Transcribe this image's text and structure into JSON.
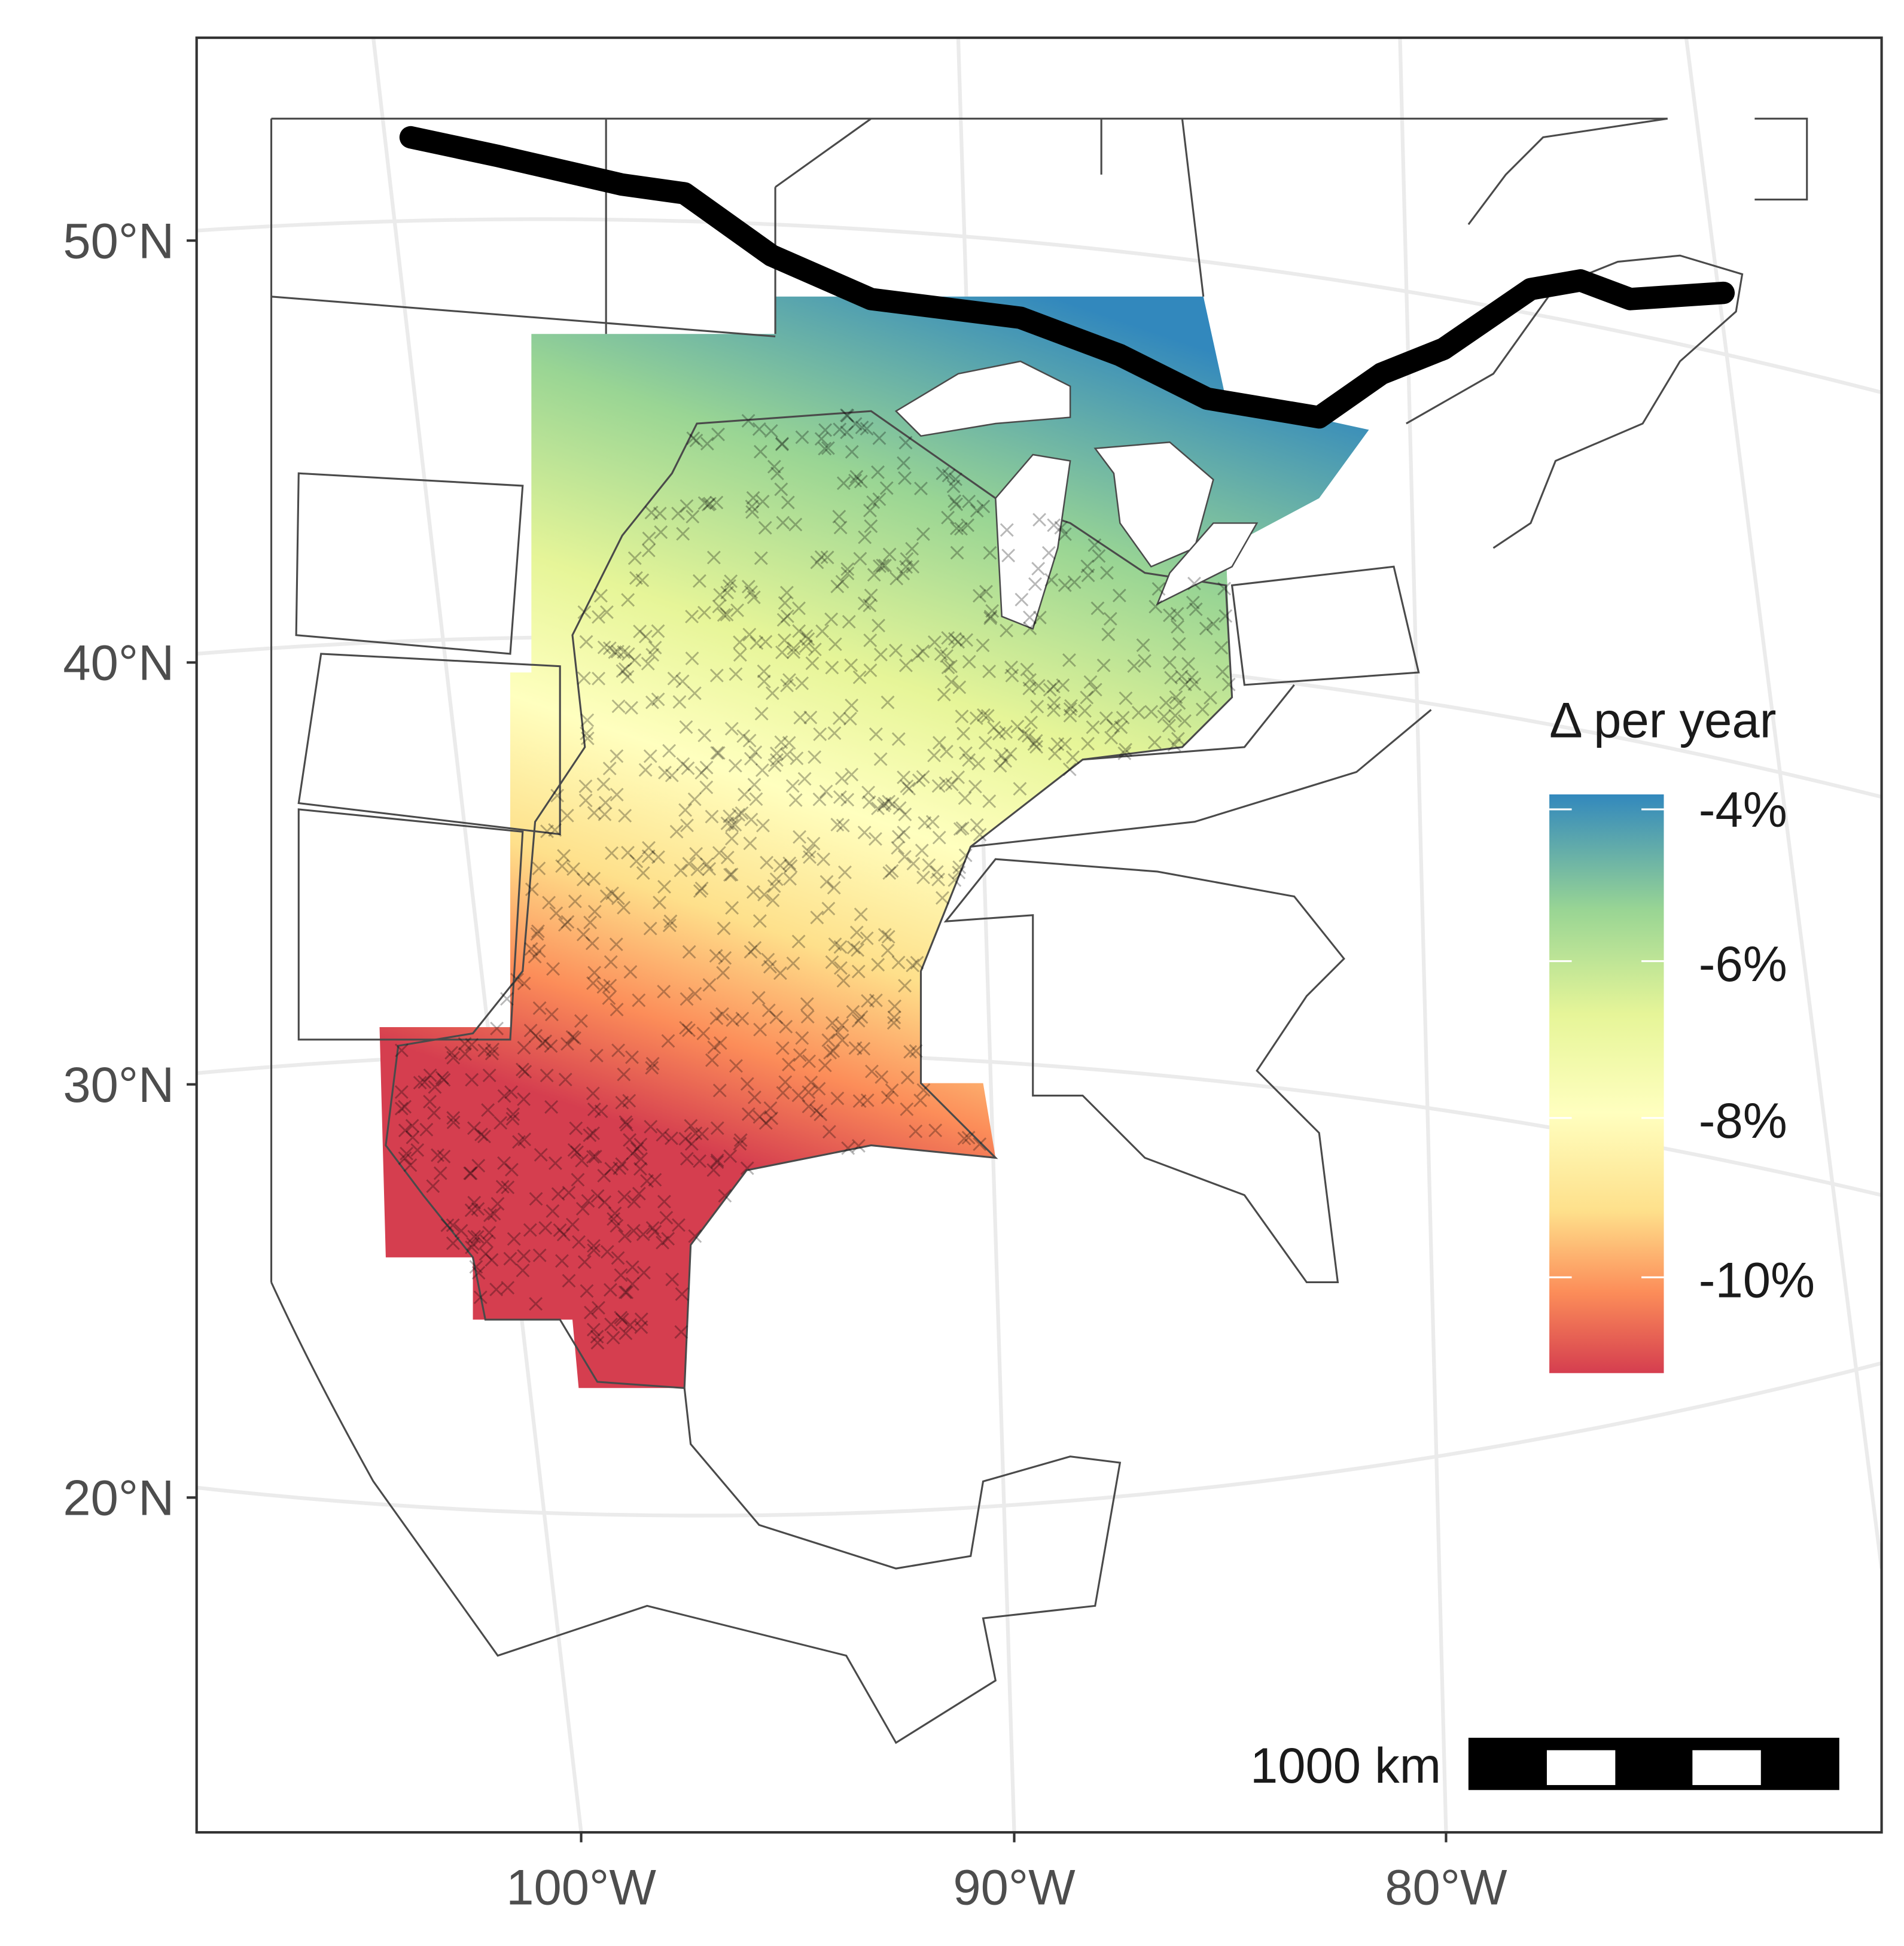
{
  "chart_data": {
    "type": "map",
    "legend": {
      "title": "Δ per year",
      "ticks": [
        "-4%",
        "-6%",
        "-8%",
        "-10%"
      ],
      "tick_values": [
        -4,
        -6,
        -8,
        -10
      ],
      "range": [
        -3.9,
        -11.2
      ],
      "colors": [
        "#3288bd",
        "#99d594",
        "#e6f598",
        "#ffffbf",
        "#fee08b",
        "#fc8d59",
        "#d53e4f"
      ],
      "placement": "right"
    },
    "y_ticks": [
      "50°N",
      "40°N",
      "30°N",
      "20°N"
    ],
    "x_ticks": [
      "100°W",
      "90°W",
      "80°W"
    ],
    "scale_bar": {
      "label": "1000 km"
    },
    "colors": {
      "line": "#000000",
      "point": "#000000",
      "border": "#4a4a4a"
    }
  }
}
